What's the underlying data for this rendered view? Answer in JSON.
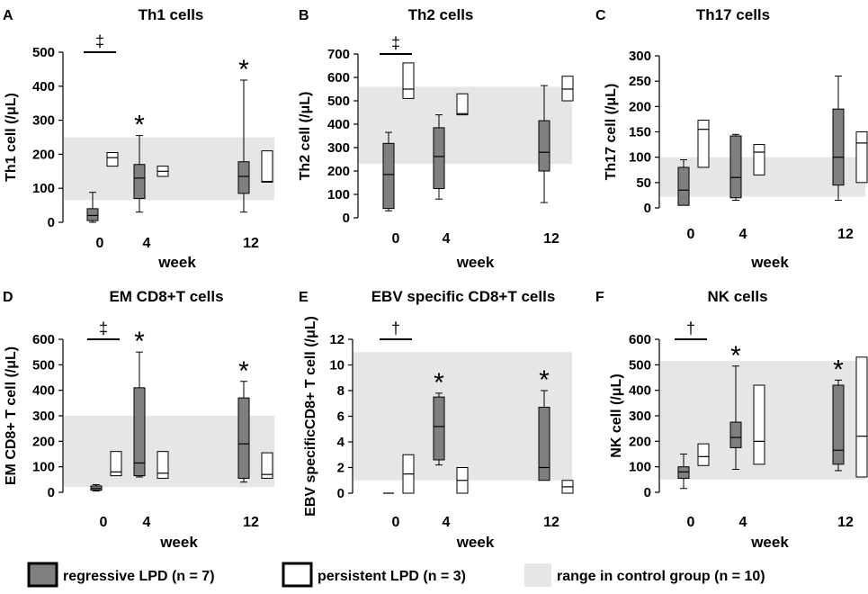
{
  "legend": {
    "regressive": "regressive LPD (n = 7)",
    "persistent": "persistent LPD (n = 3)",
    "control": "range in control group (n = 10)"
  },
  "colors": {
    "regressive_fill": "#7f7f7f",
    "persistent_fill": "#ffffff",
    "control_band": "#e6e6e6",
    "stroke": "#000000"
  },
  "chart_data": [
    {
      "letter": "A",
      "type": "boxplot",
      "title": "Th1 cells",
      "ylabel": "Th1 cell (/μL)",
      "xlabel": "week",
      "ylim": [
        0,
        500
      ],
      "yticks": [
        0,
        100,
        200,
        300,
        400,
        500
      ],
      "categories": [
        "0",
        "4",
        "12"
      ],
      "control_range": [
        65,
        250
      ],
      "series": [
        {
          "name": "regressive LPD",
          "boxes": [
            {
              "min": 0,
              "q1": 5,
              "median": 20,
              "q3": 40,
              "max": 88
            },
            {
              "min": 30,
              "q1": 70,
              "median": 130,
              "q3": 170,
              "max": 255
            },
            {
              "min": 30,
              "q1": 85,
              "median": 135,
              "q3": 178,
              "max": 418
            }
          ]
        },
        {
          "name": "persistent LPD",
          "boxes": [
            {
              "min": 165,
              "q1": 165,
              "median": 190,
              "q3": 205,
              "max": 205
            },
            {
              "min": 135,
              "q1": 135,
              "median": 150,
              "q3": 165,
              "max": 165
            },
            {
              "min": 118,
              "q1": 118,
              "median": 120,
              "q3": 210,
              "max": 210
            }
          ]
        }
      ],
      "stars": [
        "",
        "*",
        "*"
      ],
      "sig": "‡"
    },
    {
      "letter": "B",
      "type": "boxplot",
      "title": "Th2 cells",
      "ylabel": "Th2 cell (/μL)",
      "xlabel": "week",
      "ylim": [
        0,
        700
      ],
      "yticks": [
        0,
        100,
        200,
        300,
        400,
        500,
        600,
        700
      ],
      "categories": [
        "0",
        "4",
        "12"
      ],
      "control_range": [
        230,
        560
      ],
      "series": [
        {
          "name": "regressive LPD",
          "boxes": [
            {
              "min": 30,
              "q1": 40,
              "median": 185,
              "q3": 318,
              "max": 365
            },
            {
              "min": 80,
              "q1": 125,
              "median": 262,
              "q3": 385,
              "max": 440
            },
            {
              "min": 65,
              "q1": 200,
              "median": 280,
              "q3": 415,
              "max": 565
            }
          ]
        },
        {
          "name": "persistent LPD",
          "boxes": [
            {
              "min": 510,
              "q1": 510,
              "median": 550,
              "q3": 662,
              "max": 662
            },
            {
              "min": 440,
              "q1": 440,
              "median": 445,
              "q3": 530,
              "max": 530
            },
            {
              "min": 500,
              "q1": 500,
              "median": 550,
              "q3": 605,
              "max": 605
            }
          ]
        }
      ],
      "stars": [
        "",
        "",
        ""
      ],
      "sig": "‡"
    },
    {
      "letter": "C",
      "type": "boxplot",
      "title": "Th17 cells",
      "ylabel": "Th17 cell (/μL)",
      "xlabel": "week",
      "ylim": [
        0,
        300
      ],
      "yticks": [
        0,
        50,
        100,
        150,
        200,
        250,
        300
      ],
      "categories": [
        "0",
        "4",
        "12"
      ],
      "control_range": [
        22,
        100
      ],
      "series": [
        {
          "name": "regressive LPD",
          "boxes": [
            {
              "min": 5,
              "q1": 5,
              "median": 35,
              "q3": 80,
              "max": 95
            },
            {
              "min": 15,
              "q1": 20,
              "median": 60,
              "q3": 142,
              "max": 145
            },
            {
              "min": 15,
              "q1": 45,
              "median": 100,
              "q3": 195,
              "max": 260
            }
          ]
        },
        {
          "name": "persistent LPD",
          "boxes": [
            {
              "min": 80,
              "q1": 80,
              "median": 155,
              "q3": 173,
              "max": 173
            },
            {
              "min": 65,
              "q1": 65,
              "median": 110,
              "q3": 125,
              "max": 125
            },
            {
              "min": 50,
              "q1": 50,
              "median": 128,
              "q3": 150,
              "max": 150
            }
          ]
        }
      ],
      "stars": [
        "",
        "",
        ""
      ],
      "sig": ""
    },
    {
      "letter": "D",
      "type": "boxplot",
      "title": "EM CD8+T cells",
      "ylabel": "EM CD8+ T cell (/μL)",
      "xlabel": "week",
      "ylim": [
        0,
        600
      ],
      "yticks": [
        0,
        100,
        200,
        300,
        400,
        500,
        600
      ],
      "categories": [
        "0",
        "4",
        "12"
      ],
      "control_range": [
        20,
        300
      ],
      "series": [
        {
          "name": "regressive LPD",
          "boxes": [
            {
              "min": 5,
              "q1": 8,
              "median": 15,
              "q3": 25,
              "max": 30
            },
            {
              "min": 60,
              "q1": 65,
              "median": 115,
              "q3": 410,
              "max": 550
            },
            {
              "min": 40,
              "q1": 55,
              "median": 190,
              "q3": 370,
              "max": 435
            }
          ]
        },
        {
          "name": "persistent LPD",
          "boxes": [
            {
              "min": 65,
              "q1": 65,
              "median": 80,
              "q3": 160,
              "max": 160
            },
            {
              "min": 55,
              "q1": 55,
              "median": 75,
              "q3": 160,
              "max": 160
            },
            {
              "min": 55,
              "q1": 55,
              "median": 70,
              "q3": 155,
              "max": 155
            }
          ]
        }
      ],
      "stars": [
        "",
        "*",
        "*"
      ],
      "sig": "‡"
    },
    {
      "letter": "E",
      "type": "boxplot",
      "title": "EBV specific CD8+T cells",
      "ylabel": "EBV specificCD8+ T cell (/μL)",
      "xlabel": "week",
      "ylim": [
        0,
        12
      ],
      "yticks": [
        0,
        2,
        4,
        6,
        8,
        10,
        12
      ],
      "categories": [
        "0",
        "4",
        "12"
      ],
      "control_range": [
        1,
        11
      ],
      "series": [
        {
          "name": "regressive LPD",
          "boxes": [
            {
              "min": 0,
              "q1": 0,
              "median": 0,
              "q3": 0,
              "max": 0
            },
            {
              "min": 2.2,
              "q1": 2.6,
              "median": 5.2,
              "q3": 7.5,
              "max": 7.8
            },
            {
              "min": 1,
              "q1": 1,
              "median": 2,
              "q3": 6.7,
              "max": 8
            }
          ]
        },
        {
          "name": "persistent LPD",
          "boxes": [
            {
              "min": 0,
              "q1": 0,
              "median": 1.5,
              "q3": 3,
              "max": 3
            },
            {
              "min": 0,
              "q1": 0,
              "median": 1,
              "q3": 2,
              "max": 2
            },
            {
              "min": 0,
              "q1": 0,
              "median": 0.5,
              "q3": 1,
              "max": 1
            }
          ]
        }
      ],
      "stars": [
        "",
        "*",
        "*"
      ],
      "sig": "†"
    },
    {
      "letter": "F",
      "type": "boxplot",
      "title": "NK cells",
      "ylabel": "NK cell (/μL)",
      "xlabel": "week",
      "ylim": [
        0,
        600
      ],
      "yticks": [
        0,
        100,
        200,
        300,
        400,
        500,
        600
      ],
      "categories": [
        "0",
        "4",
        "12"
      ],
      "control_range": [
        50,
        515
      ],
      "series": [
        {
          "name": "regressive LPD",
          "boxes": [
            {
              "min": 15,
              "q1": 55,
              "median": 80,
              "q3": 100,
              "max": 150
            },
            {
              "min": 90,
              "q1": 175,
              "median": 215,
              "q3": 275,
              "max": 495
            },
            {
              "min": 85,
              "q1": 110,
              "median": 165,
              "q3": 420,
              "max": 440
            }
          ]
        },
        {
          "name": "persistent LPD",
          "boxes": [
            {
              "min": 105,
              "q1": 105,
              "median": 140,
              "q3": 190,
              "max": 190
            },
            {
              "min": 110,
              "q1": 110,
              "median": 200,
              "q3": 420,
              "max": 420
            },
            {
              "min": 60,
              "q1": 60,
              "median": 220,
              "q3": 530,
              "max": 530
            }
          ]
        }
      ],
      "stars": [
        "",
        "*",
        "*"
      ],
      "sig": "†"
    }
  ]
}
